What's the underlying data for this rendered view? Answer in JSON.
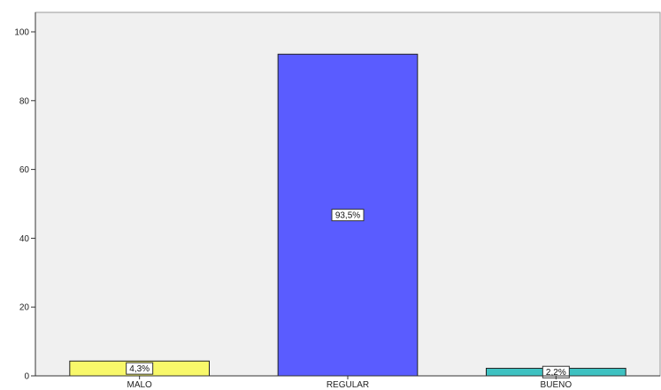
{
  "chart_data": {
    "type": "bar",
    "categories": [
      "MALO",
      "REGULAR",
      "BUENO"
    ],
    "values": [
      4.3,
      93.5,
      2.2
    ],
    "data_labels": [
      "4,3%",
      "93,5%",
      "2,2%"
    ],
    "colors": [
      "#f8f86a",
      "#5a5cff",
      "#3ec1c1"
    ],
    "background_color": "#f0f0f0",
    "ylim": [
      0,
      100
    ],
    "yticks": [
      0,
      20,
      40,
      60,
      80,
      100
    ],
    "ytick_labels": [
      "0",
      "20",
      "40",
      "60",
      "80",
      "100"
    ],
    "grid": false,
    "legend": "none"
  }
}
